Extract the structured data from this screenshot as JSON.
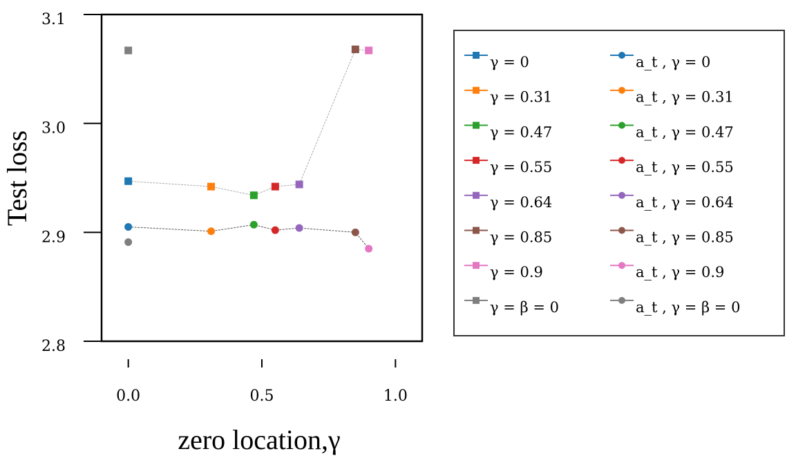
{
  "chart_data": {
    "type": "scatter",
    "xlabel": "zero location,γ",
    "ylabel": "Test loss",
    "xlim": [
      -0.1,
      1.1
    ],
    "ylim": [
      2.8,
      3.1
    ],
    "x_ticks": [
      0.0,
      0.5,
      1.0
    ],
    "x_tick_labels": [
      "0.0",
      "0.5",
      "1.0"
    ],
    "y_ticks": [
      2.8,
      2.9,
      3.0,
      3.1
    ],
    "y_tick_labels": [
      "2.8",
      "2.9",
      "3.0",
      "3.1"
    ],
    "grid": false,
    "legend_position": "outside-right",
    "connector_lines": [
      {
        "marker": "square",
        "color": "#aaaaaa",
        "style": "dashed"
      },
      {
        "marker": "circle",
        "color": "#555555",
        "style": "dashed"
      }
    ],
    "series": [
      {
        "name": "γ = 0",
        "marker": "square",
        "color": "#1f77b4",
        "x": [
          0.0
        ],
        "y": [
          2.947
        ]
      },
      {
        "name": "γ = 0.31",
        "marker": "square",
        "color": "#ff7f0e",
        "x": [
          0.31
        ],
        "y": [
          2.942
        ]
      },
      {
        "name": "γ = 0.47",
        "marker": "square",
        "color": "#2ca02c",
        "x": [
          0.47
        ],
        "y": [
          2.934
        ]
      },
      {
        "name": "γ = 0.55",
        "marker": "square",
        "color": "#d62728",
        "x": [
          0.55
        ],
        "y": [
          2.942
        ]
      },
      {
        "name": "γ = 0.64",
        "marker": "square",
        "color": "#9467bd",
        "x": [
          0.64
        ],
        "y": [
          2.944
        ]
      },
      {
        "name": "γ = 0.85",
        "marker": "square",
        "color": "#8c564b",
        "x": [
          0.85
        ],
        "y": [
          3.068
        ]
      },
      {
        "name": "γ = 0.9",
        "marker": "square",
        "color": "#e377c2",
        "x": [
          0.9
        ],
        "y": [
          3.067
        ]
      },
      {
        "name": "γ = β = 0",
        "marker": "square",
        "color": "#7f7f7f",
        "x": [
          0.0
        ],
        "y": [
          3.067
        ]
      },
      {
        "name": "a_t , γ = 0",
        "marker": "circle",
        "color": "#1f77b4",
        "x": [
          0.0
        ],
        "y": [
          2.905
        ]
      },
      {
        "name": "a_t , γ = 0.31",
        "marker": "circle",
        "color": "#ff7f0e",
        "x": [
          0.31
        ],
        "y": [
          2.901
        ]
      },
      {
        "name": "a_t , γ = 0.47",
        "marker": "circle",
        "color": "#2ca02c",
        "x": [
          0.47
        ],
        "y": [
          2.907
        ]
      },
      {
        "name": "a_t , γ = 0.55",
        "marker": "circle",
        "color": "#d62728",
        "x": [
          0.55
        ],
        "y": [
          2.902
        ]
      },
      {
        "name": "a_t , γ = 0.64",
        "marker": "circle",
        "color": "#9467bd",
        "x": [
          0.64
        ],
        "y": [
          2.904
        ]
      },
      {
        "name": "a_t , γ = 0.85",
        "marker": "circle",
        "color": "#8c564b",
        "x": [
          0.85
        ],
        "y": [
          2.9
        ]
      },
      {
        "name": "a_t , γ = 0.9",
        "marker": "circle",
        "color": "#e377c2",
        "x": [
          0.9
        ],
        "y": [
          2.885
        ]
      },
      {
        "name": "a_t , γ = β = 0",
        "marker": "circle",
        "color": "#7f7f7f",
        "x": [
          0.0
        ],
        "y": [
          2.891
        ]
      }
    ]
  }
}
